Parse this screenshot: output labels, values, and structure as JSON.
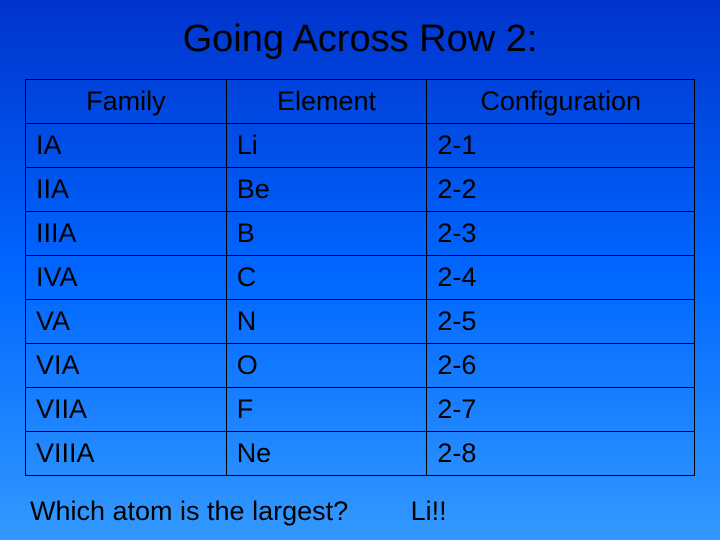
{
  "title": "Going Across Row 2:",
  "table": {
    "headers": [
      "Family",
      "Element",
      "Configuration"
    ],
    "col_widths": [
      "30%",
      "30%",
      "40%"
    ],
    "header_align": "center",
    "cell_align": "left",
    "border_color": "#000000",
    "text_color": "#000000",
    "font_size": 27,
    "rows": [
      {
        "family": "IA",
        "element": "Li",
        "config": "2-1"
      },
      {
        "family": "IIA",
        "element": "Be",
        "config": "2-2"
      },
      {
        "family": "IIIA",
        "element": "B",
        "config": "2-3"
      },
      {
        "family": "IVA",
        "element": "C",
        "config": "2-4"
      },
      {
        "family": "VA",
        "element": "N",
        "config": "2-5"
      },
      {
        "family": "VIA",
        "element": "O",
        "config": "2-6"
      },
      {
        "family": "VIIA",
        "element": "F",
        "config": "2-7"
      },
      {
        "family": "VIIIA",
        "element": "Ne",
        "config": "2-8"
      }
    ]
  },
  "question": "Which atom is the largest?",
  "answer": "Li!!",
  "background_gradient": {
    "from": "#0033cc",
    "mid": "#0066ff",
    "to": "#3399ff"
  },
  "title_color": "#000000",
  "title_fontsize": 38
}
